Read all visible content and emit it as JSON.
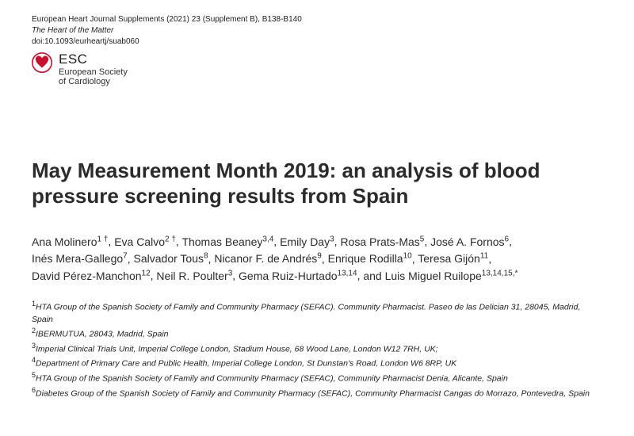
{
  "header": {
    "journal_line": "European Heart Journal Supplements (2021) 23 (Supplement B), B138-B140",
    "motto": "The Heart of the Matter",
    "doi": "doi:10.1093/eurheartj/suab060"
  },
  "logo": {
    "abbrev": "ESC",
    "full1": "European Society",
    "full2": "of Cardiology",
    "fill_color": "#c8102e"
  },
  "title": "May Measurement Month 2019: an analysis of blood pressure screening results from Spain",
  "authors": [
    {
      "name": "Ana Molinero",
      "sup": "1 †"
    },
    {
      "name": "Eva Calvo",
      "sup": "2 †"
    },
    {
      "name": "Thomas Beaney",
      "sup": "3,4"
    },
    {
      "name": "Emily Day",
      "sup": "3"
    },
    {
      "name": "Rosa Prats-Mas",
      "sup": "5"
    },
    {
      "name": "José A. Fornos",
      "sup": "6"
    },
    {
      "name": "Inés Mera-Gallego",
      "sup": "7"
    },
    {
      "name": "Salvador Tous",
      "sup": "8"
    },
    {
      "name": "Nicanor F. de Andrés",
      "sup": "9"
    },
    {
      "name": "Enrique Rodilla",
      "sup": "10"
    },
    {
      "name": "Teresa Gijón",
      "sup": "11"
    },
    {
      "name": "David Pérez-Manchon",
      "sup": "12"
    },
    {
      "name": "Neil R. Poulter",
      "sup": "3"
    },
    {
      "name": "Gema Ruiz-Hurtado",
      "sup": "13,14"
    },
    {
      "name": "Luis Miguel Ruilope",
      "sup": "13,14,15,*",
      "last": true
    }
  ],
  "affiliations": [
    {
      "num": "1",
      "text": "HTA Group of the Spanish Society of Family and Community Pharmacy (SEFAC). Community Pharmacist. Paseo de las Delician 31, 28045, Madrid, Spain"
    },
    {
      "num": "2",
      "text": "IBERMUTUA, 28043, Madrid, Spain"
    },
    {
      "num": "3",
      "text": "Imperial Clinical Trials Unit, Imperial College London, Stadium House, 68 Wood Lane, London W12 7RH, UK;"
    },
    {
      "num": "4",
      "text": "Department of Primary Care and Public Health, Imperial College London, St Dunstan's Road, London W6 8RP, UK"
    },
    {
      "num": "5",
      "text": "HTA Group of the Spanish Society of Family and Community Pharmacy (SEFAC), Community Pharmacist Denia, Alicante, Spain"
    },
    {
      "num": "6",
      "text": "Diabetes Group of the Spanish Society of Family and Community Pharmacy (SEFAC), Community Pharmacist Cangas do Morrazo, Pontevedra, Spain"
    }
  ]
}
